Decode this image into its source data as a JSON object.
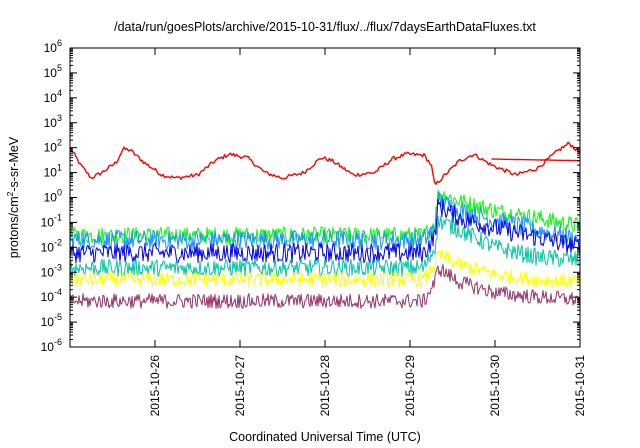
{
  "chart_data": {
    "type": "line",
    "title": "/data/run/goesPlots/archive/2015-10-31/flux/../flux/7daysEarthDataFluxes.txt",
    "xlabel": "Coordinated Universal Time (UTC)",
    "ylabel": {
      "base": "protons/cm",
      "exp": "2",
      "rest": "-s-sr-MeV"
    },
    "yscale": "log",
    "ylim": [
      -6,
      6
    ],
    "y_tick_exponents": [
      -6,
      -5,
      -4,
      -3,
      -2,
      -1,
      0,
      1,
      2,
      3,
      4,
      5,
      6
    ],
    "y_tick_base": "10",
    "xlim": [
      "2015-10-25T00:00",
      "2015-10-31T00:00"
    ],
    "x_ticks": [
      "2015-10-26",
      "2015-10-27",
      "2015-10-28",
      "2015-10-29",
      "2015-10-30",
      "2015-10-31"
    ],
    "grid": false,
    "legend": "none",
    "series": [
      {
        "color": "#ff0000",
        "points": [
          [
            "2015-10-25T00:00",
            100
          ],
          [
            "2015-10-25T03:00",
            20
          ],
          [
            "2015-10-25T06:00",
            6
          ],
          [
            "2015-10-25T09:00",
            10
          ],
          [
            "2015-10-25T13:00",
            25
          ],
          [
            "2015-10-25T15:00",
            90
          ],
          [
            "2015-10-25T17:00",
            80
          ],
          [
            "2015-10-25T21:00",
            25
          ],
          [
            "2015-10-26T02:00",
            8
          ],
          [
            "2015-10-26T06:00",
            6
          ],
          [
            "2015-10-26T12:00",
            8
          ],
          [
            "2015-10-26T17:00",
            30
          ],
          [
            "2015-10-26T21:00",
            55
          ],
          [
            "2015-10-27T02:00",
            40
          ],
          [
            "2015-10-27T07:00",
            10
          ],
          [
            "2015-10-27T12:00",
            6
          ],
          [
            "2015-10-27T18:00",
            10
          ],
          [
            "2015-10-27T23:00",
            40
          ],
          [
            "2015-10-28T02:00",
            30
          ],
          [
            "2015-10-28T08:00",
            8
          ],
          [
            "2015-10-28T14:00",
            10
          ],
          [
            "2015-10-28T19:00",
            35
          ],
          [
            "2015-10-28T23:00",
            55
          ],
          [
            "2015-10-29T04:00",
            50
          ],
          [
            "2015-10-29T06:00",
            20
          ],
          [
            "2015-10-29T07:00",
            3
          ],
          [
            "2015-10-29T09:00",
            6
          ],
          [
            "2015-10-29T14:00",
            30
          ],
          [
            "2015-10-29T18:00",
            55
          ],
          [
            "2015-10-29T23:00",
            20
          ],
          [
            "2015-10-30T06:00",
            8
          ],
          [
            "2015-10-30T12:00",
            15
          ],
          [
            "2015-10-30T18:00",
            80
          ],
          [
            "2015-10-30T21:00",
            150
          ],
          [
            "2015-10-31T00:00",
            60
          ]
        ]
      },
      {
        "color": "#ff0000",
        "points": [
          [
            "2015-10-29T23:00",
            35
          ],
          [
            "2015-10-31T00:00",
            30
          ]
        ]
      },
      {
        "color": "#00ff00",
        "points": [
          [
            "2015-10-25T00:00",
            0.03
          ],
          [
            "2015-10-29T04:00",
            0.03
          ],
          [
            "2015-10-29T07:00",
            0.1
          ],
          [
            "2015-10-29T08:00",
            1.5
          ],
          [
            "2015-10-29T14:00",
            0.7
          ],
          [
            "2015-10-30T00:00",
            0.3
          ],
          [
            "2015-10-30T12:00",
            0.15
          ],
          [
            "2015-10-31T00:00",
            0.07
          ]
        ]
      },
      {
        "color": "#1e90ff",
        "points": [
          [
            "2015-10-25T00:00",
            0.02
          ],
          [
            "2015-10-29T04:00",
            0.02
          ],
          [
            "2015-10-29T07:00",
            0.06
          ],
          [
            "2015-10-29T08:00",
            0.8
          ],
          [
            "2015-10-29T14:00",
            0.3
          ],
          [
            "2015-10-30T00:00",
            0.12
          ],
          [
            "2015-10-30T12:00",
            0.05
          ],
          [
            "2015-10-31T00:00",
            0.02
          ]
        ]
      },
      {
        "color": "#0000ff",
        "points": [
          [
            "2015-10-25T00:00",
            0.006
          ],
          [
            "2015-10-29T04:00",
            0.006
          ],
          [
            "2015-10-29T07:00",
            0.03
          ],
          [
            "2015-10-29T08:00",
            0.5
          ],
          [
            "2015-10-29T14:00",
            0.15
          ],
          [
            "2015-10-30T00:00",
            0.06
          ],
          [
            "2015-10-30T12:00",
            0.025
          ],
          [
            "2015-10-31T00:00",
            0.01
          ]
        ]
      },
      {
        "color": "#00c8a0",
        "points": [
          [
            "2015-10-25T00:00",
            0.0015
          ],
          [
            "2015-10-29T04:00",
            0.0015
          ],
          [
            "2015-10-29T07:00",
            0.01
          ],
          [
            "2015-10-29T08:00",
            0.12
          ],
          [
            "2015-10-29T14:00",
            0.05
          ],
          [
            "2015-10-30T00:00",
            0.01
          ],
          [
            "2015-10-30T12:00",
            0.004
          ],
          [
            "2015-10-31T00:00",
            0.003
          ]
        ]
      },
      {
        "color": "#ffff00",
        "points": [
          [
            "2015-10-25T00:00",
            0.0005
          ],
          [
            "2015-10-29T04:00",
            0.0005
          ],
          [
            "2015-10-29T07:00",
            0.002
          ],
          [
            "2015-10-29T08:00",
            0.005
          ],
          [
            "2015-10-29T14:00",
            0.002
          ],
          [
            "2015-10-30T00:00",
            0.0008
          ],
          [
            "2015-10-30T12:00",
            0.0005
          ],
          [
            "2015-10-31T00:00",
            0.0004
          ]
        ]
      },
      {
        "color": "#993366",
        "points": [
          [
            "2015-10-25T00:00",
            7e-05
          ],
          [
            "2015-10-29T04:00",
            7e-05
          ],
          [
            "2015-10-29T07:00",
            0.0004
          ],
          [
            "2015-10-29T08:00",
            0.0015
          ],
          [
            "2015-10-29T14:00",
            0.0004
          ],
          [
            "2015-10-30T00:00",
            0.00015
          ],
          [
            "2015-10-30T12:00",
            0.0001
          ],
          [
            "2015-10-31T00:00",
            8e-05
          ]
        ]
      }
    ]
  }
}
